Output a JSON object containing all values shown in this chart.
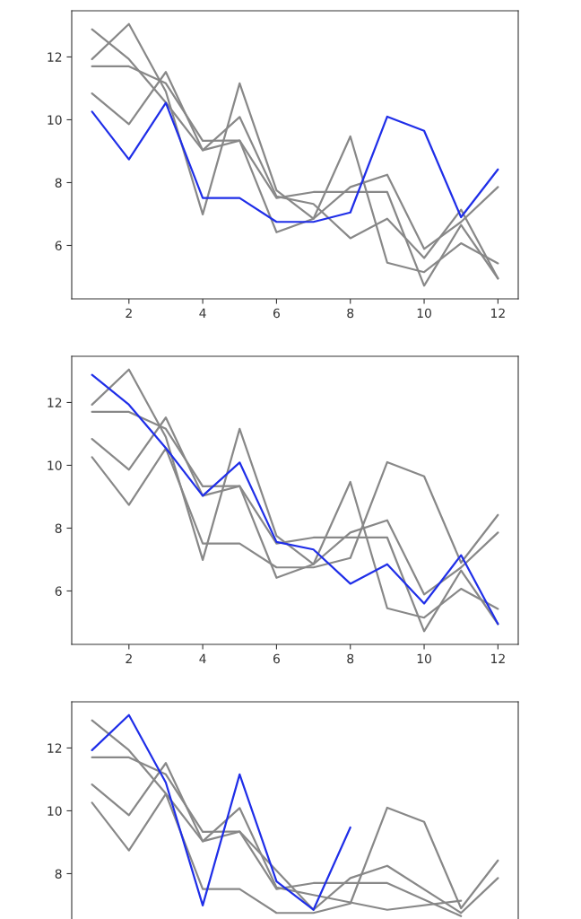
{
  "chart_data": [
    {
      "type": "line",
      "x": [
        1,
        2,
        3,
        4,
        5,
        6,
        7,
        8,
        9,
        10,
        11,
        12
      ],
      "xlim": [
        0.45,
        12.55
      ],
      "ylim": [
        4.3,
        13.47
      ],
      "xticks": [
        2,
        4,
        6,
        8,
        10,
        12
      ],
      "yticks": [
        6,
        8,
        10,
        12
      ],
      "series": [
        {
          "color": "#888888",
          "values": [
            12.88,
            11.93,
            10.55,
            9.03,
            10.09,
            7.56,
            7.32,
            6.23,
            6.85,
            5.6,
            7.14,
            4.95
          ]
        },
        {
          "color": "#888888",
          "values": [
            11.93,
            13.05,
            10.9,
            6.99,
            11.16,
            7.75,
            6.85,
            9.47,
            5.45,
            5.15,
            6.07,
            5.43
          ]
        },
        {
          "color": "#888888",
          "values": [
            11.7,
            11.7,
            11.16,
            9.33,
            9.34,
            7.51,
            7.7,
            7.7,
            7.7,
            4.72,
            6.65,
            4.95
          ]
        },
        {
          "color": "#888888",
          "values": [
            10.84,
            9.86,
            11.52,
            9.03,
            9.34,
            6.42,
            6.85,
            7.86,
            8.25,
            5.89,
            6.75,
            7.86
          ]
        },
        {
          "color": "#1f2ee8",
          "values": [
            10.26,
            8.74,
            10.54,
            7.51,
            7.51,
            6.75,
            6.75,
            7.05,
            10.1,
            9.65,
            6.9,
            8.42
          ]
        }
      ]
    },
    {
      "type": "line",
      "x": [
        1,
        2,
        3,
        4,
        5,
        6,
        7,
        8,
        9,
        10,
        11,
        12
      ],
      "xlim": [
        0.45,
        12.55
      ],
      "ylim": [
        4.3,
        13.47
      ],
      "xticks": [
        2,
        4,
        6,
        8,
        10,
        12
      ],
      "yticks": [
        6,
        8,
        10,
        12
      ],
      "series": [
        {
          "color": "#888888",
          "values": [
            10.26,
            8.74,
            10.54,
            7.51,
            7.51,
            6.75,
            6.75,
            7.05,
            10.1,
            9.65,
            6.9,
            8.42
          ]
        },
        {
          "color": "#888888",
          "values": [
            11.93,
            13.05,
            10.9,
            6.99,
            11.16,
            7.75,
            6.85,
            9.47,
            5.45,
            5.15,
            6.07,
            5.43
          ]
        },
        {
          "color": "#888888",
          "values": [
            11.7,
            11.7,
            11.16,
            9.33,
            9.34,
            7.51,
            7.7,
            7.7,
            7.7,
            4.72,
            6.65,
            4.95
          ]
        },
        {
          "color": "#888888",
          "values": [
            10.84,
            9.86,
            11.52,
            9.03,
            9.34,
            6.42,
            6.85,
            7.86,
            8.25,
            5.89,
            6.75,
            7.86
          ]
        },
        {
          "color": "#1f2ee8",
          "values": [
            12.88,
            11.93,
            10.55,
            9.03,
            10.09,
            7.56,
            7.32,
            6.23,
            6.85,
            5.6,
            7.14,
            4.95
          ]
        }
      ]
    },
    {
      "type": "line",
      "x": [
        1,
        2,
        3,
        4,
        5,
        6,
        7,
        8,
        9,
        10,
        11,
        12
      ],
      "xlim": [
        0.45,
        12.55
      ],
      "ylim": [
        6.52,
        13.47
      ],
      "yticks": [
        8,
        10,
        12
      ],
      "tick_labels": "y",
      "series": [
        {
          "color": "#888888",
          "values": [
            10.26,
            8.74,
            10.54,
            7.51,
            7.51,
            6.75,
            6.75,
            7.05,
            10.1,
            9.65,
            6.9,
            8.42
          ]
        },
        {
          "color": "#888888",
          "values": [
            12.88,
            11.93,
            10.55,
            9.03,
            10.09,
            7.56,
            7.32,
            null,
            6.85,
            null,
            7.14,
            null
          ]
        },
        {
          "color": "#888888",
          "values": [
            11.7,
            11.7,
            11.16,
            9.33,
            9.34,
            7.51,
            7.7,
            7.7,
            7.7,
            null,
            6.65,
            null
          ]
        },
        {
          "color": "#888888",
          "values": [
            10.84,
            9.86,
            11.52,
            9.03,
            9.34,
            null,
            6.85,
            7.86,
            8.25,
            null,
            6.75,
            7.86
          ]
        },
        {
          "color": "#1f2ee8",
          "values": [
            11.93,
            13.05,
            10.9,
            6.99,
            11.16,
            7.75,
            6.85,
            9.47,
            null,
            null,
            null,
            null
          ]
        }
      ]
    }
  ]
}
